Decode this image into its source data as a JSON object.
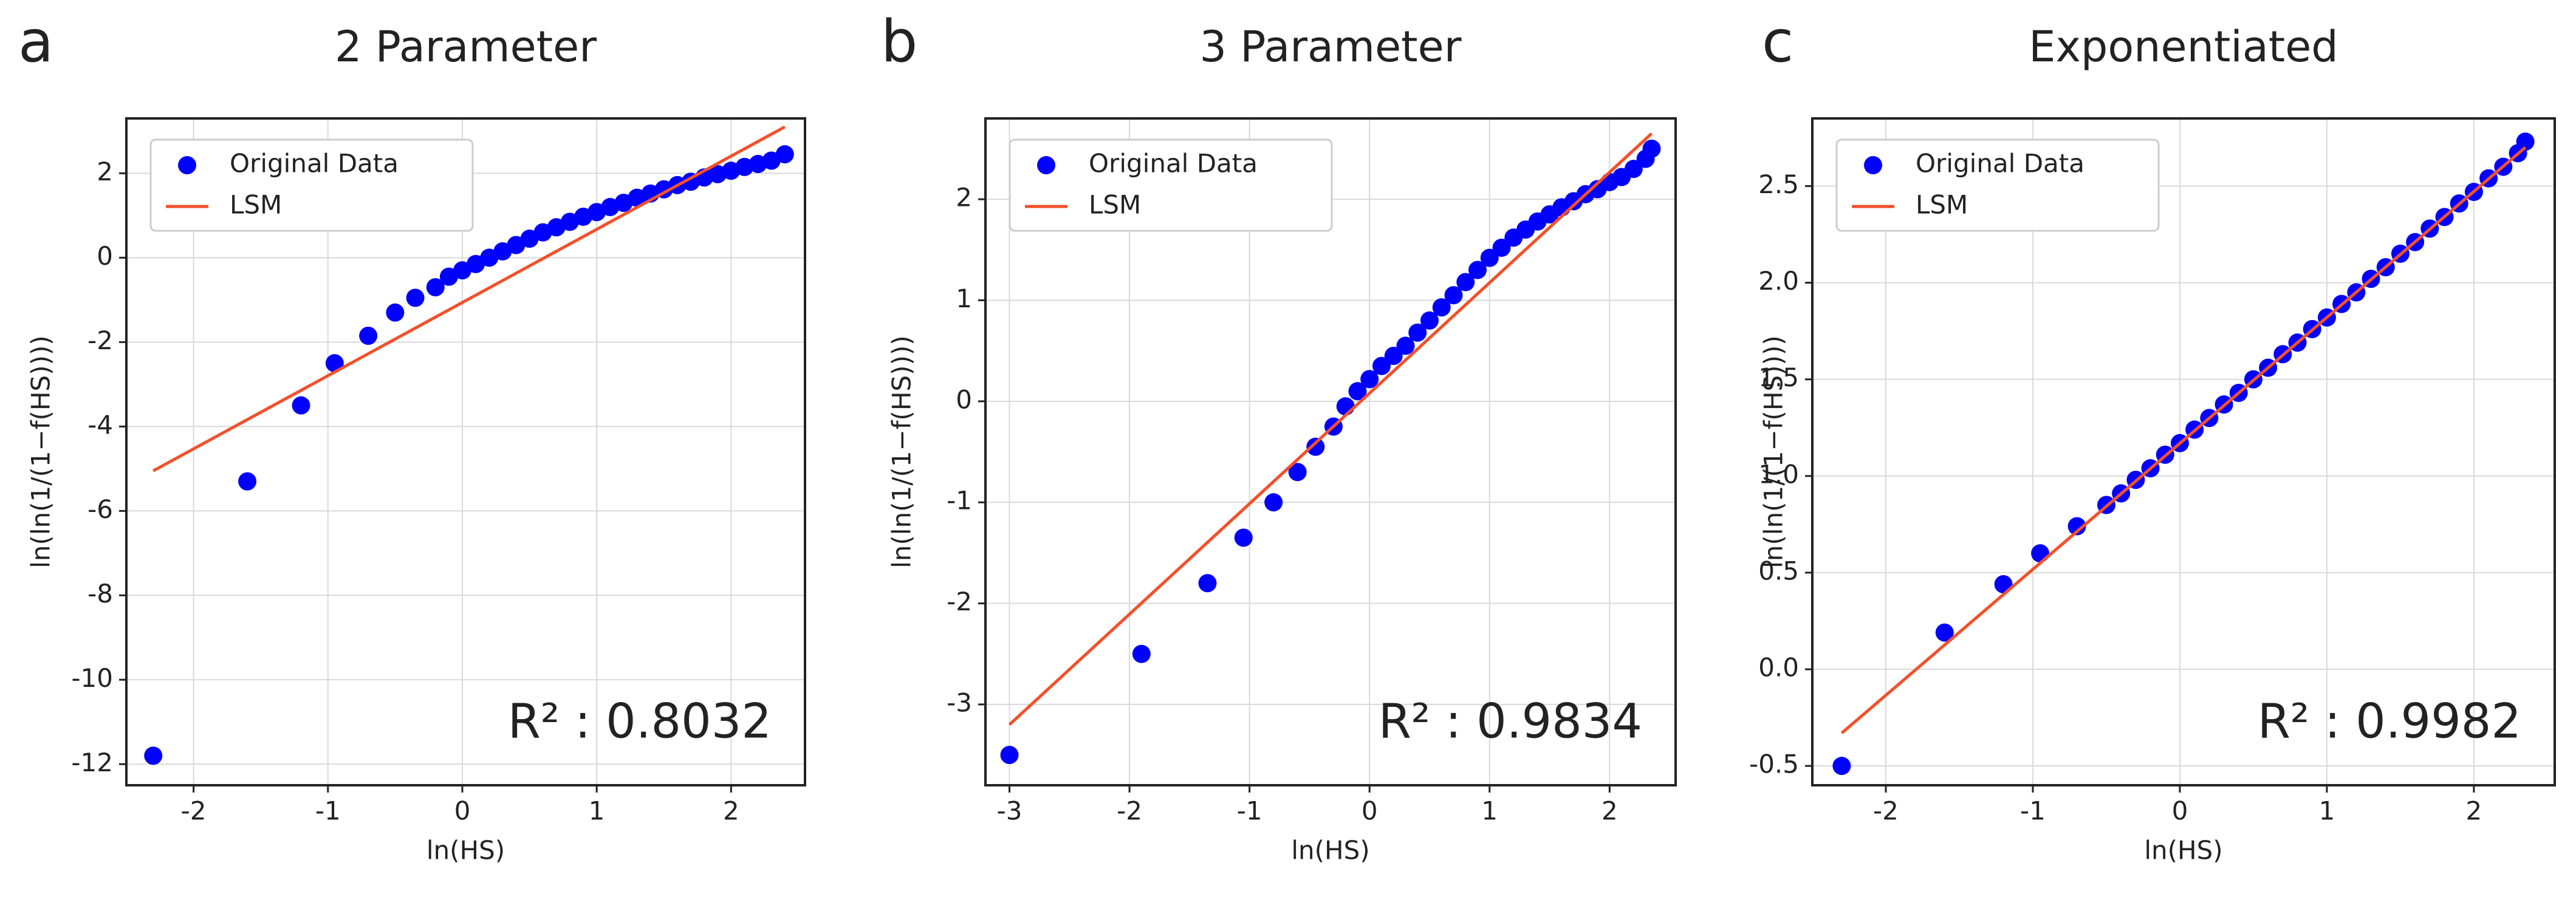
{
  "chart_data": [
    {
      "type": "scatter",
      "panel_label": "a",
      "title": "2 Parameter",
      "xlabel": "ln(HS)",
      "ylabel": "ln(ln(1/(1−f(HS))))",
      "annotation": "R² : 0.8032",
      "legend": "upper left",
      "grid": true,
      "xlim": [
        -2.5,
        2.55
      ],
      "ylim": [
        -12.5,
        3.3
      ],
      "xticks": [
        -2,
        -1,
        0,
        1,
        2
      ],
      "yticks": [
        -12,
        -10,
        -8,
        -6,
        -4,
        -2,
        0,
        2
      ],
      "series": [
        {
          "name": "Original Data",
          "color": "#0000ff",
          "style": "markers",
          "x": [
            -2.3,
            -1.6,
            -1.2,
            -0.95,
            -0.7,
            -0.5,
            -0.35,
            -0.2,
            -0.1,
            0,
            0.1,
            0.2,
            0.3,
            0.4,
            0.5,
            0.6,
            0.7,
            0.8,
            0.9,
            1.0,
            1.1,
            1.2,
            1.3,
            1.4,
            1.5,
            1.6,
            1.7,
            1.8,
            1.9,
            2.0,
            2.1,
            2.2,
            2.3,
            2.4
          ],
          "values": [
            -11.8,
            -5.3,
            -3.5,
            -2.5,
            -1.85,
            -1.3,
            -0.95,
            -0.7,
            -0.45,
            -0.3,
            -0.15,
            0,
            0.15,
            0.3,
            0.45,
            0.6,
            0.72,
            0.85,
            0.97,
            1.08,
            1.2,
            1.3,
            1.42,
            1.52,
            1.62,
            1.72,
            1.8,
            1.9,
            1.98,
            2.06,
            2.15,
            2.22,
            2.3,
            2.45
          ]
        },
        {
          "name": "LSM",
          "color": "#f2502a",
          "style": "line",
          "x": [
            -2.3,
            2.4
          ],
          "values": [
            -5.05,
            3.1
          ]
        }
      ]
    },
    {
      "type": "scatter",
      "panel_label": "b",
      "title": "3 Parameter",
      "xlabel": "ln(HS)",
      "ylabel": "ln(ln(1/(1−f(HS))))",
      "annotation": "R² : 0.9834",
      "legend": "upper left",
      "grid": true,
      "xlim": [
        -3.2,
        2.55
      ],
      "ylim": [
        -3.8,
        2.8
      ],
      "xticks": [
        -3,
        -2,
        -1,
        0,
        1,
        2
      ],
      "yticks": [
        -3,
        -2,
        -1,
        0,
        1,
        2
      ],
      "series": [
        {
          "name": "Original Data",
          "color": "#0000ff",
          "style": "markers",
          "x": [
            -3,
            -1.9,
            -1.35,
            -1.05,
            -0.8,
            -0.6,
            -0.45,
            -0.3,
            -0.2,
            -0.1,
            0,
            0.1,
            0.2,
            0.3,
            0.4,
            0.5,
            0.6,
            0.7,
            0.8,
            0.9,
            1.0,
            1.1,
            1.2,
            1.3,
            1.4,
            1.5,
            1.6,
            1.7,
            1.8,
            1.9,
            2.0,
            2.1,
            2.2,
            2.3,
            2.35
          ],
          "values": [
            -3.5,
            -2.5,
            -1.8,
            -1.35,
            -1.0,
            -0.7,
            -0.45,
            -0.25,
            -0.05,
            0.1,
            0.22,
            0.35,
            0.45,
            0.55,
            0.68,
            0.8,
            0.93,
            1.05,
            1.18,
            1.3,
            1.42,
            1.52,
            1.62,
            1.7,
            1.78,
            1.85,
            1.92,
            1.98,
            2.05,
            2.1,
            2.17,
            2.22,
            2.3,
            2.4,
            2.5
          ]
        },
        {
          "name": "LSM",
          "color": "#f2502a",
          "style": "line",
          "x": [
            -3,
            2.35
          ],
          "values": [
            -3.2,
            2.65
          ]
        }
      ]
    },
    {
      "type": "scatter",
      "panel_label": "c",
      "title": "Exponentiated",
      "xlabel": "ln(HS)",
      "ylabel": "ln(ln(1/(1−f(HS))))",
      "annotation": "R² : 0.9982",
      "legend": "upper left",
      "grid": true,
      "xlim": [
        -2.5,
        2.55
      ],
      "ylim": [
        -0.6,
        2.85
      ],
      "xticks": [
        -2,
        -1,
        0,
        1,
        2
      ],
      "yticks": [
        -0.5,
        {
          "value": 0,
          "label": "0.0"
        },
        0.5,
        {
          "value": 1,
          "label": "1.0"
        },
        1.5,
        {
          "value": 2,
          "label": "2.0"
        },
        2.5
      ],
      "series": [
        {
          "name": "Original Data",
          "color": "#0000ff",
          "style": "markers",
          "x": [
            -2.3,
            -1.6,
            -1.2,
            -0.95,
            -0.7,
            -0.5,
            -0.4,
            -0.3,
            -0.2,
            -0.1,
            0,
            0.1,
            0.2,
            0.3,
            0.4,
            0.5,
            0.6,
            0.7,
            0.8,
            0.9,
            1.0,
            1.1,
            1.2,
            1.3,
            1.4,
            1.5,
            1.6,
            1.7,
            1.8,
            1.9,
            2.0,
            2.1,
            2.2,
            2.3,
            2.35
          ],
          "values": [
            -0.5,
            0.19,
            0.44,
            0.6,
            0.74,
            0.85,
            0.91,
            0.98,
            1.04,
            1.11,
            1.17,
            1.24,
            1.3,
            1.37,
            1.43,
            1.5,
            1.56,
            1.63,
            1.69,
            1.76,
            1.82,
            1.89,
            1.95,
            2.02,
            2.08,
            2.15,
            2.21,
            2.28,
            2.34,
            2.41,
            2.47,
            2.54,
            2.6,
            2.67,
            2.73
          ]
        },
        {
          "name": "LSM",
          "color": "#f2502a",
          "style": "line",
          "x": [
            -2.3,
            2.35
          ],
          "values": [
            -0.33,
            2.7
          ]
        }
      ]
    }
  ]
}
